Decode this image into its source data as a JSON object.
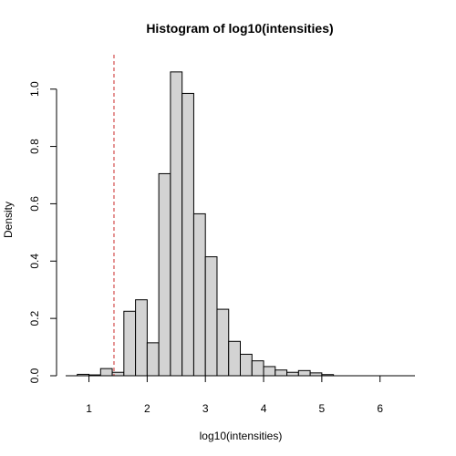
{
  "chart_data": {
    "type": "bar",
    "title": "Histogram of log10(intensities)",
    "xlabel": "log10(intensities)",
    "ylabel": "Density",
    "xlim": [
      0.6,
      6.6
    ],
    "ylim": [
      0,
      1.12
    ],
    "x_ticks": [
      1,
      2,
      3,
      4,
      5,
      6
    ],
    "y_ticks": [
      0.0,
      0.2,
      0.4,
      0.6,
      0.8,
      1.0
    ],
    "bin_width": 0.2,
    "bins": [
      {
        "x0": 0.8,
        "x1": 1.0,
        "density": 0.005
      },
      {
        "x0": 1.0,
        "x1": 1.2,
        "density": 0.003
      },
      {
        "x0": 1.2,
        "x1": 1.4,
        "density": 0.025
      },
      {
        "x0": 1.4,
        "x1": 1.6,
        "density": 0.012
      },
      {
        "x0": 1.6,
        "x1": 1.8,
        "density": 0.225
      },
      {
        "x0": 1.8,
        "x1": 2.0,
        "density": 0.265
      },
      {
        "x0": 2.0,
        "x1": 2.2,
        "density": 0.115
      },
      {
        "x0": 2.2,
        "x1": 2.4,
        "density": 0.705
      },
      {
        "x0": 2.4,
        "x1": 2.6,
        "density": 1.06
      },
      {
        "x0": 2.6,
        "x1": 2.8,
        "density": 0.985
      },
      {
        "x0": 2.8,
        "x1": 3.0,
        "density": 0.565
      },
      {
        "x0": 3.0,
        "x1": 3.2,
        "density": 0.415
      },
      {
        "x0": 3.2,
        "x1": 3.4,
        "density": 0.232
      },
      {
        "x0": 3.4,
        "x1": 3.6,
        "density": 0.12
      },
      {
        "x0": 3.6,
        "x1": 3.8,
        "density": 0.075
      },
      {
        "x0": 3.8,
        "x1": 4.0,
        "density": 0.052
      },
      {
        "x0": 4.0,
        "x1": 4.2,
        "density": 0.032
      },
      {
        "x0": 4.2,
        "x1": 4.4,
        "density": 0.02
      },
      {
        "x0": 4.4,
        "x1": 4.6,
        "density": 0.012
      },
      {
        "x0": 4.6,
        "x1": 4.8,
        "density": 0.018
      },
      {
        "x0": 4.8,
        "x1": 5.0,
        "density": 0.01
      },
      {
        "x0": 5.0,
        "x1": 5.2,
        "density": 0.004
      },
      {
        "x0": 5.2,
        "x1": 5.4,
        "density": 0.0
      },
      {
        "x0": 5.4,
        "x1": 5.6,
        "density": 0.0
      },
      {
        "x0": 5.6,
        "x1": 5.8,
        "density": 0.0
      },
      {
        "x0": 5.8,
        "x1": 6.0,
        "density": 0.0
      },
      {
        "x0": 6.0,
        "x1": 6.2,
        "density": 0.0
      },
      {
        "x0": 6.2,
        "x1": 6.4,
        "density": 0.0
      },
      {
        "x0": 6.4,
        "x1": 6.6,
        "density": 0.0
      }
    ],
    "reference_line": {
      "x": 1.43,
      "color": "#cc2b2b",
      "style": "dashed"
    },
    "bar_fill": "#d3d3d3",
    "grid": false,
    "legend": "none"
  }
}
